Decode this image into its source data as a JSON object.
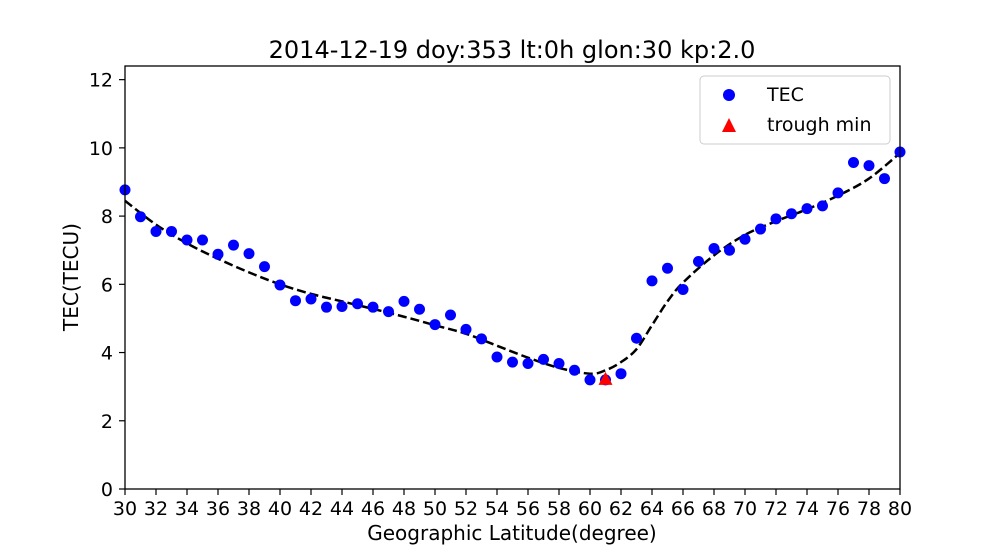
{
  "chart_data": {
    "type": "scatter",
    "title": "2014-12-19  doy:353  lt:0h  glon:30  kp:2.0",
    "xlabel": "Geographic Latitude(degree)",
    "ylabel": "TEC(TECU)",
    "xlim": [
      30,
      80
    ],
    "ylim": [
      0,
      12.4
    ],
    "xticks": [
      30,
      32,
      34,
      36,
      38,
      40,
      42,
      44,
      46,
      48,
      50,
      52,
      54,
      56,
      58,
      60,
      62,
      64,
      66,
      68,
      70,
      72,
      74,
      76,
      78,
      80
    ],
    "yticks": [
      0,
      2,
      4,
      6,
      8,
      10,
      12
    ],
    "grid": false,
    "legend_position": "top-right",
    "series": [
      {
        "name": "TEC",
        "kind": "scatter",
        "marker": "circle",
        "color": "#0000ff",
        "x": [
          30,
          31,
          32,
          33,
          34,
          35,
          36,
          37,
          38,
          39,
          40,
          41,
          42,
          43,
          44,
          45,
          46,
          47,
          48,
          49,
          50,
          51,
          52,
          53,
          54,
          55,
          56,
          57,
          58,
          59,
          60,
          61,
          62,
          63,
          64,
          65,
          66,
          67,
          68,
          69,
          70,
          71,
          72,
          73,
          74,
          75,
          76,
          77,
          78,
          79,
          80
        ],
        "y": [
          8.77,
          7.98,
          7.55,
          7.55,
          7.3,
          7.3,
          6.88,
          7.15,
          6.9,
          6.52,
          5.98,
          5.52,
          5.57,
          5.33,
          5.35,
          5.43,
          5.33,
          5.2,
          5.5,
          5.27,
          4.82,
          5.1,
          4.68,
          4.4,
          3.87,
          3.72,
          3.68,
          3.8,
          3.68,
          3.48,
          3.2,
          3.2,
          3.38,
          4.42,
          6.1,
          6.47,
          5.85,
          6.67,
          7.05,
          7.0,
          7.32,
          7.62,
          7.92,
          8.07,
          8.22,
          8.3,
          8.68,
          9.57,
          9.48,
          9.1,
          9.88
        ]
      },
      {
        "name": "",
        "kind": "line",
        "style": "dashed",
        "color": "#000000",
        "x": [
          30,
          32,
          34,
          36,
          38,
          40,
          42,
          44,
          46,
          48,
          50,
          52,
          54,
          56,
          58,
          60,
          61,
          62,
          63,
          64,
          65,
          66,
          68,
          70,
          72,
          74,
          76,
          78,
          80
        ],
        "y": [
          8.45,
          7.75,
          7.2,
          6.75,
          6.35,
          6.0,
          5.72,
          5.5,
          5.28,
          5.05,
          4.8,
          4.55,
          4.2,
          3.85,
          3.55,
          3.38,
          3.48,
          3.72,
          4.1,
          4.8,
          5.5,
          6.05,
          6.85,
          7.45,
          7.85,
          8.2,
          8.6,
          9.1,
          9.85
        ]
      },
      {
        "name": "trough min",
        "kind": "scatter",
        "marker": "triangle",
        "color": "#ff0000",
        "x": [
          61
        ],
        "y": [
          3.2
        ]
      }
    ]
  }
}
